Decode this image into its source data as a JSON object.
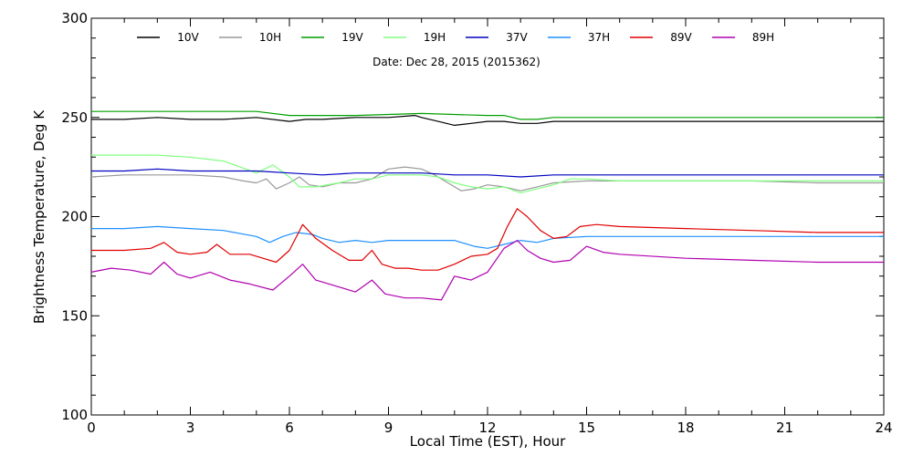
{
  "chart_data": {
    "type": "line",
    "title": "Date: Dec 28, 2015 (2015362)",
    "xlabel": "Local Time (EST), Hour",
    "ylabel": "Brightness Temperature, Deg K",
    "xlim": [
      0,
      24
    ],
    "ylim": [
      100,
      300
    ],
    "xticks": [
      0,
      3,
      6,
      9,
      12,
      15,
      18,
      21,
      24
    ],
    "yticks": [
      100,
      150,
      200,
      250,
      300
    ],
    "grid": false,
    "legend_position": "top",
    "series": [
      {
        "name": "10V",
        "color": "#000000",
        "points": [
          [
            0,
            249
          ],
          [
            1,
            249
          ],
          [
            2,
            250
          ],
          [
            3,
            249
          ],
          [
            4,
            249
          ],
          [
            5,
            250
          ],
          [
            6,
            248
          ],
          [
            6.5,
            249
          ],
          [
            7,
            249
          ],
          [
            8,
            250
          ],
          [
            9,
            250
          ],
          [
            9.8,
            251
          ],
          [
            10,
            250
          ],
          [
            10.5,
            248
          ],
          [
            11,
            246
          ],
          [
            11.5,
            247
          ],
          [
            12,
            248
          ],
          [
            12.5,
            248
          ],
          [
            13,
            247
          ],
          [
            13.5,
            247
          ],
          [
            14,
            248
          ],
          [
            15,
            248
          ],
          [
            16,
            248
          ],
          [
            18,
            248
          ],
          [
            20,
            248
          ],
          [
            22,
            248
          ],
          [
            24,
            248
          ]
        ]
      },
      {
        "name": "10H",
        "color": "#999999",
        "points": [
          [
            0,
            220
          ],
          [
            1,
            221
          ],
          [
            2,
            221
          ],
          [
            3,
            221
          ],
          [
            4,
            220
          ],
          [
            4.6,
            218
          ],
          [
            5,
            217
          ],
          [
            5.3,
            219
          ],
          [
            5.6,
            214
          ],
          [
            6,
            217
          ],
          [
            6.3,
            220
          ],
          [
            6.6,
            216
          ],
          [
            7,
            215
          ],
          [
            7.5,
            217
          ],
          [
            8,
            217
          ],
          [
            8.5,
            219
          ],
          [
            9,
            224
          ],
          [
            9.5,
            225
          ],
          [
            10,
            224
          ],
          [
            10.4,
            221
          ],
          [
            10.8,
            217
          ],
          [
            11.2,
            213
          ],
          [
            11.6,
            214
          ],
          [
            12,
            216
          ],
          [
            12.5,
            215
          ],
          [
            13,
            213
          ],
          [
            13.5,
            215
          ],
          [
            14,
            217
          ],
          [
            15,
            218
          ],
          [
            16,
            218
          ],
          [
            18,
            218
          ],
          [
            20,
            218
          ],
          [
            22,
            217
          ],
          [
            24,
            217
          ]
        ]
      },
      {
        "name": "19V",
        "color": "#00a000",
        "points": [
          [
            0,
            253
          ],
          [
            2,
            253
          ],
          [
            4,
            253
          ],
          [
            5,
            253
          ],
          [
            6,
            251
          ],
          [
            8,
            251
          ],
          [
            10,
            252
          ],
          [
            12,
            251
          ],
          [
            12.5,
            251
          ],
          [
            13,
            249
          ],
          [
            13.5,
            249
          ],
          [
            14,
            250
          ],
          [
            16,
            250
          ],
          [
            18,
            250
          ],
          [
            20,
            250
          ],
          [
            22,
            250
          ],
          [
            24,
            250
          ]
        ]
      },
      {
        "name": "19H",
        "color": "#80ff80",
        "points": [
          [
            0,
            231
          ],
          [
            1,
            231
          ],
          [
            2,
            231
          ],
          [
            3,
            230
          ],
          [
            4,
            228
          ],
          [
            4.5,
            225
          ],
          [
            5,
            222
          ],
          [
            5.5,
            226
          ],
          [
            6,
            220
          ],
          [
            6.3,
            215
          ],
          [
            6.8,
            215
          ],
          [
            7.5,
            217
          ],
          [
            8,
            219
          ],
          [
            8.5,
            219
          ],
          [
            9,
            221
          ],
          [
            10,
            221
          ],
          [
            10.5,
            220
          ],
          [
            11,
            217
          ],
          [
            11.5,
            215
          ],
          [
            12,
            214
          ],
          [
            12.5,
            215
          ],
          [
            13,
            212
          ],
          [
            13.5,
            214
          ],
          [
            14,
            216
          ],
          [
            14.5,
            219
          ],
          [
            15,
            219
          ],
          [
            16,
            218
          ],
          [
            18,
            218
          ],
          [
            20,
            218
          ],
          [
            22,
            218
          ],
          [
            24,
            218
          ]
        ]
      },
      {
        "name": "37V",
        "color": "#0000c0",
        "points": [
          [
            0,
            223
          ],
          [
            1,
            223
          ],
          [
            2,
            224
          ],
          [
            3,
            223
          ],
          [
            4,
            223
          ],
          [
            5,
            223
          ],
          [
            6,
            222
          ],
          [
            7,
            221
          ],
          [
            8,
            222
          ],
          [
            9,
            222
          ],
          [
            10,
            222
          ],
          [
            11,
            221
          ],
          [
            12,
            221
          ],
          [
            13,
            220
          ],
          [
            14,
            221
          ],
          [
            16,
            221
          ],
          [
            18,
            221
          ],
          [
            20,
            221
          ],
          [
            22,
            221
          ],
          [
            24,
            221
          ]
        ]
      },
      {
        "name": "37H",
        "color": "#1e90ff",
        "points": [
          [
            0,
            194
          ],
          [
            1,
            194
          ],
          [
            2,
            195
          ],
          [
            3,
            194
          ],
          [
            4,
            193
          ],
          [
            5,
            190
          ],
          [
            5.4,
            187
          ],
          [
            5.8,
            190
          ],
          [
            6.2,
            192
          ],
          [
            6.7,
            191
          ],
          [
            7,
            189
          ],
          [
            7.5,
            187
          ],
          [
            8,
            188
          ],
          [
            8.5,
            187
          ],
          [
            9,
            188
          ],
          [
            10,
            188
          ],
          [
            11,
            188
          ],
          [
            11.6,
            185
          ],
          [
            12,
            184
          ],
          [
            12.5,
            186
          ],
          [
            13,
            188
          ],
          [
            13.5,
            187
          ],
          [
            14,
            189
          ],
          [
            15,
            190
          ],
          [
            16,
            190
          ],
          [
            18,
            190
          ],
          [
            20,
            190
          ],
          [
            22,
            190
          ],
          [
            24,
            190
          ]
        ]
      },
      {
        "name": "89V",
        "color": "#e00000",
        "points": [
          [
            0,
            183
          ],
          [
            1,
            183
          ],
          [
            1.8,
            184
          ],
          [
            2.2,
            187
          ],
          [
            2.6,
            182
          ],
          [
            3,
            181
          ],
          [
            3.5,
            182
          ],
          [
            3.8,
            186
          ],
          [
            4.2,
            181
          ],
          [
            4.8,
            181
          ],
          [
            5.2,
            179
          ],
          [
            5.6,
            177
          ],
          [
            6,
            183
          ],
          [
            6.4,
            196
          ],
          [
            6.8,
            189
          ],
          [
            7.3,
            183
          ],
          [
            7.8,
            178
          ],
          [
            8.2,
            178
          ],
          [
            8.5,
            183
          ],
          [
            8.8,
            176
          ],
          [
            9.2,
            174
          ],
          [
            9.6,
            174
          ],
          [
            10,
            173
          ],
          [
            10.5,
            173
          ],
          [
            11,
            176
          ],
          [
            11.5,
            180
          ],
          [
            12,
            181
          ],
          [
            12.3,
            184
          ],
          [
            12.6,
            195
          ],
          [
            12.9,
            204
          ],
          [
            13.2,
            200
          ],
          [
            13.6,
            193
          ],
          [
            14,
            189
          ],
          [
            14.4,
            190
          ],
          [
            14.8,
            195
          ],
          [
            15.3,
            196
          ],
          [
            16,
            195
          ],
          [
            18,
            194
          ],
          [
            20,
            193
          ],
          [
            22,
            192
          ],
          [
            24,
            192
          ]
        ]
      },
      {
        "name": "89H",
        "color": "#b000b0",
        "points": [
          [
            0,
            172
          ],
          [
            0.6,
            174
          ],
          [
            1.2,
            173
          ],
          [
            1.8,
            171
          ],
          [
            2.2,
            177
          ],
          [
            2.6,
            171
          ],
          [
            3,
            169
          ],
          [
            3.6,
            172
          ],
          [
            4.2,
            168
          ],
          [
            4.8,
            166
          ],
          [
            5.5,
            163
          ],
          [
            6,
            170
          ],
          [
            6.4,
            176
          ],
          [
            6.8,
            168
          ],
          [
            7.4,
            165
          ],
          [
            8,
            162
          ],
          [
            8.5,
            168
          ],
          [
            8.9,
            161
          ],
          [
            9.5,
            159
          ],
          [
            10,
            159
          ],
          [
            10.6,
            158
          ],
          [
            11,
            170
          ],
          [
            11.5,
            168
          ],
          [
            12,
            172
          ],
          [
            12.5,
            184
          ],
          [
            12.9,
            188
          ],
          [
            13.2,
            183
          ],
          [
            13.6,
            179
          ],
          [
            14,
            177
          ],
          [
            14.5,
            178
          ],
          [
            15,
            185
          ],
          [
            15.5,
            182
          ],
          [
            16,
            181
          ],
          [
            18,
            179
          ],
          [
            20,
            178
          ],
          [
            22,
            177
          ],
          [
            24,
            177
          ]
        ]
      }
    ]
  }
}
